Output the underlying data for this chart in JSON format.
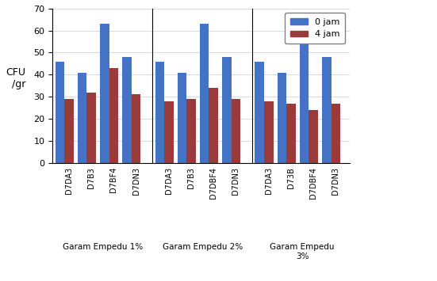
{
  "groups": [
    {
      "label": "Garam Empedu 1%",
      "categories": [
        "D7DA3",
        "D7B3",
        "D7BF4",
        "D7DN3"
      ],
      "values_0jam": [
        46,
        41,
        63,
        48
      ],
      "values_4jam": [
        29,
        32,
        43,
        31
      ]
    },
    {
      "label": "Garam Empedu 2%",
      "categories": [
        "D7DA3",
        "D7B3",
        "D7DBF4",
        "D7DN3"
      ],
      "values_0jam": [
        46,
        41,
        63,
        48
      ],
      "values_4jam": [
        28,
        29,
        34,
        29
      ]
    },
    {
      "label": "Garam Empedu\n3%",
      "categories": [
        "D7DA3",
        "D73B",
        "D7DBF4",
        "D7DN3"
      ],
      "values_0jam": [
        46,
        41,
        63,
        48
      ],
      "values_4jam": [
        28,
        27,
        24,
        27
      ]
    }
  ],
  "color_0jam": "#4472C4",
  "color_4jam": "#9B3A3A",
  "ylabel": "CFU\n/gr",
  "ylim": [
    0,
    70
  ],
  "yticks": [
    0,
    10,
    20,
    30,
    40,
    50,
    60,
    70
  ],
  "legend_0jam": "0 jam",
  "legend_4jam": "4 jam"
}
